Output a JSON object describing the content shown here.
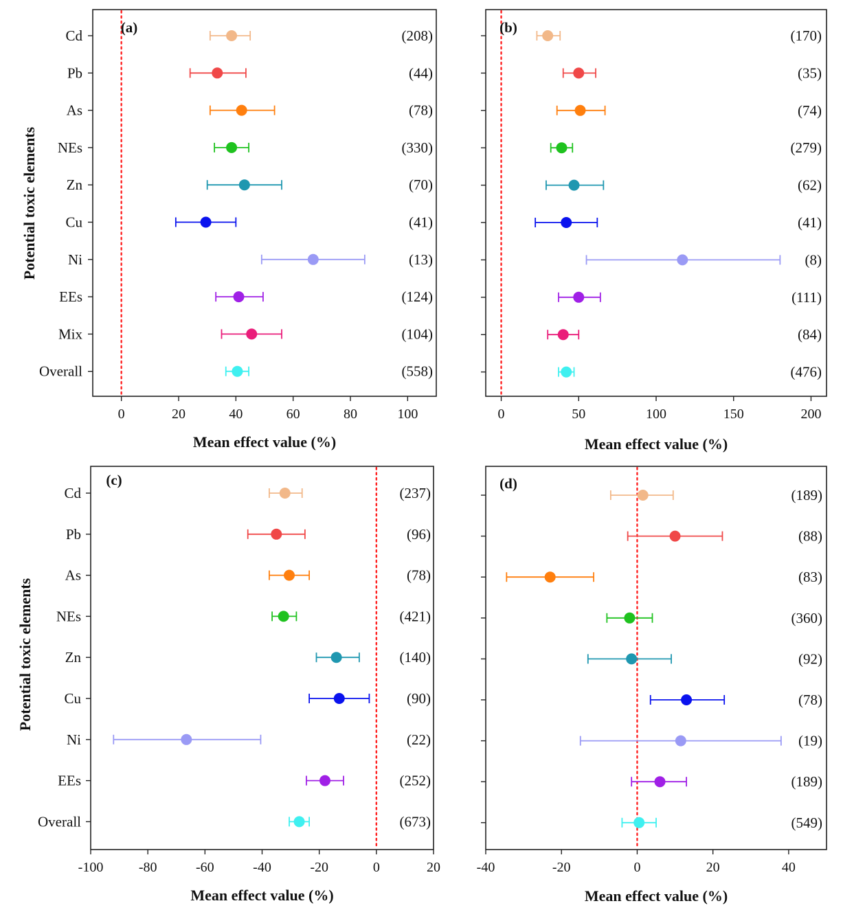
{
  "ylabel_top": "Potential toxic elements",
  "ylabel_bottom": "Potential toxic elements",
  "chart_data": [
    {
      "type": "scatter",
      "panel": "(a)",
      "xlabel": "Mean effect value (%)",
      "xlim": [
        -10,
        110
      ],
      "xticks": [
        "0",
        "20",
        "40",
        "60",
        "80",
        "100"
      ],
      "xtick_values": [
        0,
        20,
        40,
        60,
        80,
        100
      ],
      "reference_line": 0,
      "categories": [
        "Cd",
        "Pb",
        "As",
        "NEs",
        "Zn",
        "Cu",
        "Ni",
        "EEs",
        "Mix",
        "Overall"
      ],
      "mean": [
        38.5,
        33.5,
        42,
        38.5,
        43,
        29.5,
        67,
        41,
        45.5,
        40.5
      ],
      "ci_low": [
        31,
        24,
        31,
        32.5,
        30,
        19,
        49,
        33,
        35,
        36.5
      ],
      "ci_high": [
        45,
        43.5,
        53.5,
        44.5,
        56,
        40,
        85,
        49.5,
        56,
        44.5
      ],
      "counts": [
        "(208)",
        "(44)",
        "(78)",
        "(330)",
        "(70)",
        "(41)",
        "(13)",
        "(124)",
        "(104)",
        "(558)"
      ],
      "colors": [
        "#f2b889",
        "#f04848",
        "#ff7f0e",
        "#1fc21f",
        "#1f97b0",
        "#0a12ee",
        "#9a9af5",
        "#a020e6",
        "#ea1d7a",
        "#3ff0f0"
      ]
    },
    {
      "type": "scatter",
      "panel": "(b)",
      "xlabel": "Mean effect value (%)",
      "xlim": [
        -10,
        210
      ],
      "xticks": [
        "0",
        "50",
        "100",
        "150",
        "200"
      ],
      "xtick_values": [
        0,
        50,
        100,
        150,
        200
      ],
      "reference_line": 0,
      "categories": [
        "Cd",
        "Pb",
        "As",
        "NEs",
        "Zn",
        "Cu",
        "Ni",
        "EEs",
        "Mix",
        "Overall"
      ],
      "mean": [
        30,
        50,
        51,
        39,
        47,
        42,
        117,
        50,
        40,
        42
      ],
      "ci_low": [
        23,
        40,
        36,
        32,
        29,
        22,
        55,
        37,
        30,
        37
      ],
      "ci_high": [
        38,
        61,
        67,
        46,
        66,
        62,
        180,
        64,
        50,
        47
      ],
      "counts": [
        "(170)",
        "(35)",
        "(74)",
        "(279)",
        "(62)",
        "(41)",
        "(8)",
        "(111)",
        "(84)",
        "(476)"
      ],
      "colors": [
        "#f2b889",
        "#f04848",
        "#ff7f0e",
        "#1fc21f",
        "#1f97b0",
        "#0a12ee",
        "#9a9af5",
        "#a020e6",
        "#ea1d7a",
        "#3ff0f0"
      ]
    },
    {
      "type": "scatter",
      "panel": "(c)",
      "xlabel": "Mean effect value (%)",
      "xlim": [
        -100,
        20
      ],
      "xticks": [
        "-100",
        "-80",
        "-60",
        "-40",
        "-20",
        "0",
        "20"
      ],
      "xtick_values": [
        -100,
        -80,
        -60,
        -40,
        -20,
        0,
        20
      ],
      "reference_line": 0,
      "categories": [
        "Cd",
        "Pb",
        "As",
        "NEs",
        "Zn",
        "Cu",
        "Ni",
        "EEs",
        "Overall"
      ],
      "mean": [
        -32,
        -35,
        -30.5,
        -32.5,
        -14,
        -13,
        -66.5,
        -18,
        -27
      ],
      "ci_low": [
        -37.5,
        -45,
        -37.5,
        -36.5,
        -21,
        -23.5,
        -92,
        -24.5,
        -30.5
      ],
      "ci_high": [
        -26,
        -25,
        -23.5,
        -28,
        -6,
        -2.5,
        -40.5,
        -11.5,
        -23.5
      ],
      "counts": [
        "(237)",
        "(96)",
        "(78)",
        "(421)",
        "(140)",
        "(90)",
        "(22)",
        "(252)",
        "(673)"
      ],
      "colors": [
        "#f2b889",
        "#f04848",
        "#ff7f0e",
        "#1fc21f",
        "#1f97b0",
        "#0a12ee",
        "#9a9af5",
        "#a020e6",
        "#3ff0f0"
      ]
    },
    {
      "type": "scatter",
      "panel": "(d)",
      "xlabel": "Mean effect value (%)",
      "xlim": [
        -40,
        50
      ],
      "xticks": [
        "-40",
        "-20",
        "0",
        "20",
        "40"
      ],
      "xtick_values": [
        -40,
        -20,
        0,
        20,
        40
      ],
      "reference_line": 0,
      "categories": [
        "Cd",
        "Pb",
        "As",
        "NEs",
        "Zn",
        "Cu",
        "Ni",
        "EEs",
        "Overall"
      ],
      "mean": [
        1.5,
        10,
        -23,
        -2,
        -1.5,
        13,
        11.5,
        6,
        0.5
      ],
      "ci_low": [
        -7,
        -2.5,
        -34.5,
        -8,
        -13,
        3.5,
        -15,
        -1.5,
        -4
      ],
      "ci_high": [
        9.5,
        22.5,
        -11.5,
        4,
        9,
        23,
        38,
        13,
        5
      ],
      "counts": [
        "(189)",
        "(88)",
        "(83)",
        "(360)",
        "(92)",
        "(78)",
        "(19)",
        "(189)",
        "(549)"
      ],
      "colors": [
        "#f2b889",
        "#f04848",
        "#ff7f0e",
        "#1fc21f",
        "#1f97b0",
        "#0a12ee",
        "#9a9af5",
        "#a020e6",
        "#3ff0f0"
      ]
    }
  ]
}
